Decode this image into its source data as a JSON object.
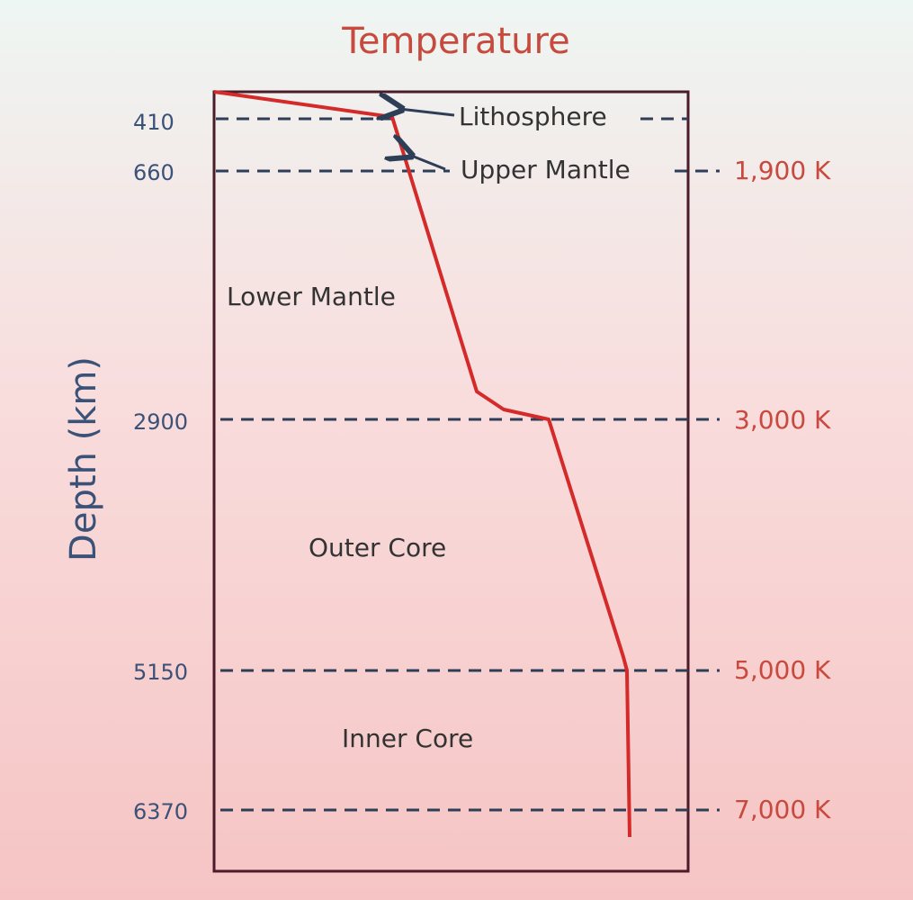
{
  "title": "Temperature",
  "axis_label": "Depth (km)",
  "depths": [
    "410",
    "660",
    "2900",
    "5150",
    "6370"
  ],
  "layers": [
    "Lithosphere",
    "Upper Mantle",
    "Lower Mantle",
    "Outer Core",
    "Inner Core"
  ],
  "temperatures": [
    "1,900 K",
    "3,000 K",
    "5,000 K",
    "7,000 K"
  ]
}
